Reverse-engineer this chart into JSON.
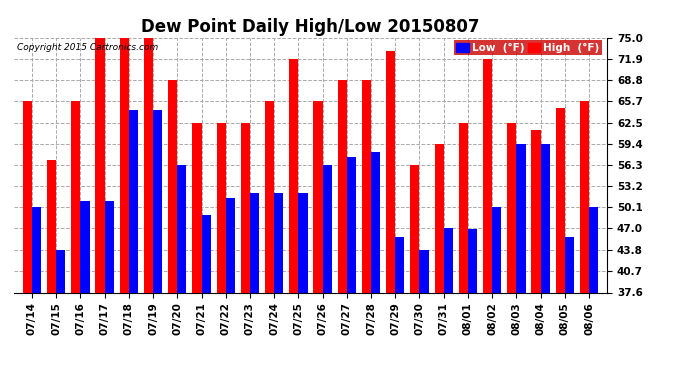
{
  "title": "Dew Point Daily High/Low 20150807",
  "copyright": "Copyright 2015 Cartronics.com",
  "dates": [
    "07/14",
    "07/15",
    "07/16",
    "07/17",
    "07/18",
    "07/19",
    "07/20",
    "07/21",
    "07/22",
    "07/23",
    "07/24",
    "07/25",
    "07/26",
    "07/27",
    "07/28",
    "07/29",
    "07/30",
    "07/31",
    "08/01",
    "08/02",
    "08/03",
    "08/04",
    "08/05",
    "08/06"
  ],
  "low_values": [
    50.1,
    43.8,
    51.0,
    51.0,
    64.4,
    64.4,
    56.3,
    49.0,
    51.5,
    52.2,
    52.2,
    52.2,
    56.3,
    57.5,
    58.2,
    45.8,
    43.8,
    47.0,
    46.9,
    50.1,
    59.4,
    59.4,
    45.8,
    50.1
  ],
  "high_values": [
    65.7,
    57.0,
    65.7,
    75.0,
    75.0,
    75.0,
    68.8,
    62.5,
    62.5,
    62.5,
    65.7,
    71.9,
    65.7,
    68.8,
    68.8,
    73.0,
    56.3,
    59.4,
    62.5,
    71.9,
    62.5,
    61.5,
    64.6,
    65.7
  ],
  "low_color": "#0000ff",
  "high_color": "#ff0000",
  "bg_color": "#ffffff",
  "grid_color": "#aaaaaa",
  "ylim_min": 37.6,
  "ylim_max": 75.0,
  "yticks": [
    37.6,
    40.7,
    43.8,
    47.0,
    50.1,
    53.2,
    56.3,
    59.4,
    62.5,
    65.7,
    68.8,
    71.9,
    75.0
  ],
  "bar_width": 0.38,
  "title_fontsize": 12,
  "tick_fontsize": 7.5,
  "legend_low_label": "Low  (°F)",
  "legend_high_label": "High  (°F)",
  "fig_width": 6.9,
  "fig_height": 3.75,
  "dpi": 100
}
